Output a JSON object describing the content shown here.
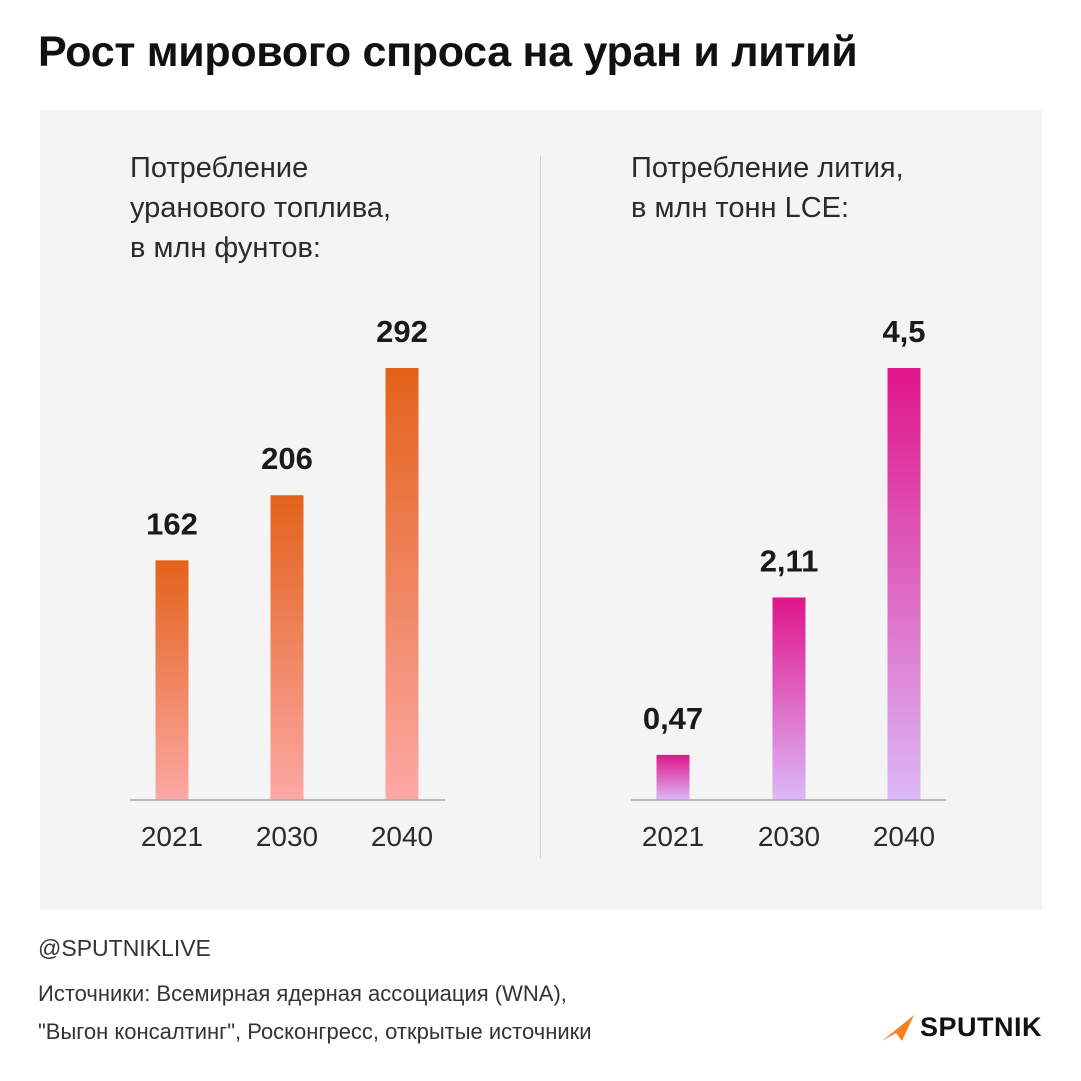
{
  "title": "Рост мирового спроса на уран и литий",
  "charts": [
    {
      "title_lines": [
        "Потребление",
        "уранового топлива,",
        "в млн фунтов:"
      ],
      "colors": {
        "top": "#e3621a",
        "bottom": "#fca8a4"
      }
    },
    {
      "title_lines": [
        "Потребление лития,",
        "в млн тонн LCE:"
      ],
      "colors": {
        "top": "#e0158a",
        "bottom": "#dcb8f8"
      }
    }
  ],
  "chart_data": [
    {
      "type": "bar",
      "title": "Потребление уранового топлива, в млн фунтов:",
      "categories": [
        "2021",
        "2030",
        "2040"
      ],
      "values": [
        162,
        206,
        292
      ],
      "labels": [
        "162",
        "206",
        "292"
      ],
      "xlabel": "",
      "ylabel": "",
      "ylim": [
        0,
        292
      ]
    },
    {
      "type": "bar",
      "title": "Потребление лития, в млн тонн LCE:",
      "categories": [
        "2021",
        "2030",
        "2040"
      ],
      "values": [
        0.47,
        2.11,
        4.5
      ],
      "labels": [
        "0,47",
        "2,11",
        "4,5"
      ],
      "xlabel": "",
      "ylabel": "",
      "ylim": [
        0,
        4.5
      ]
    }
  ],
  "footer": {
    "handle": "@SPUTNIKLIVE",
    "sources_lines": [
      "Источники: Всемирная ядерная ассоциация (WNA),",
      "\"Выгон консалтинг\", Росконгресс, открытые источники"
    ]
  },
  "logo": {
    "text": "SPUTNIK",
    "icon": "sputnik-logo-icon",
    "color": "#f5821f"
  }
}
